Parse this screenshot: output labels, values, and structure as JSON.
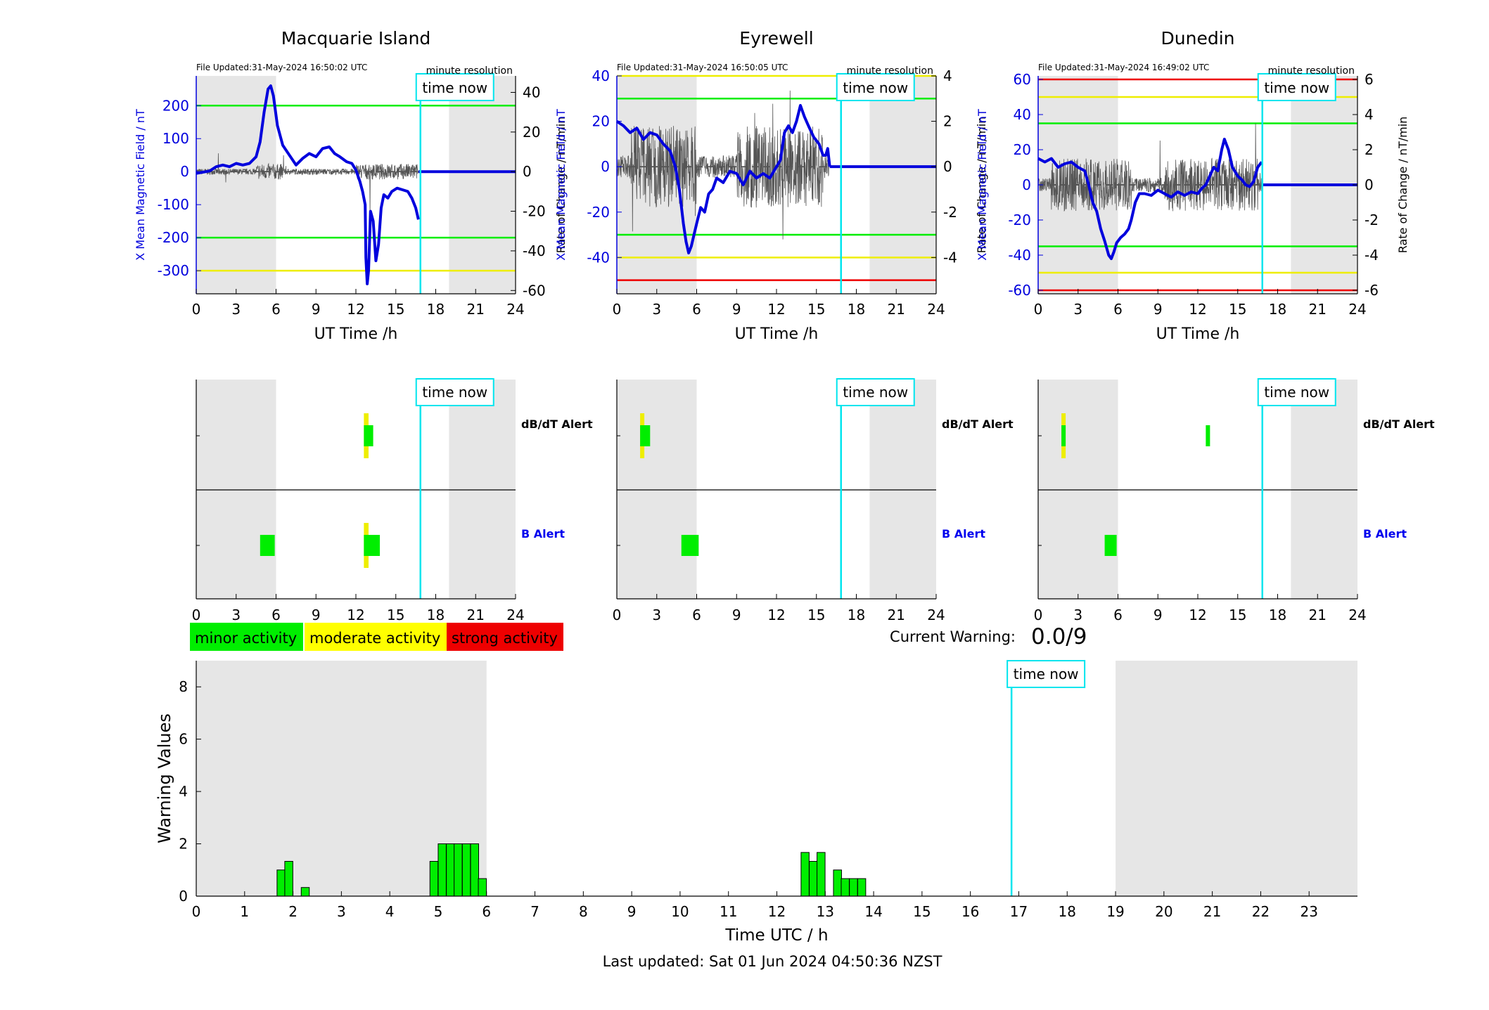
{
  "time_now_label": "time now",
  "time_now_h": 16.85,
  "night_shading": [
    [
      0,
      6
    ],
    [
      19,
      24
    ]
  ],
  "res_label": "minute resolution",
  "panels": [
    {
      "station": "Macquarie Island",
      "file_updated": "File Updated:31-May-2024 16:50:02 UTC",
      "ylabel_left": "X Mean Magnetic Field / nT",
      "ylabel_right": "Rate of Change / nT/min",
      "xlabel": "UT Time /h",
      "left_range": [
        -370,
        290
      ],
      "left_ticks": [
        -300,
        -200,
        -100,
        0,
        100,
        200
      ],
      "right_range": [
        -61.67,
        48.33
      ],
      "right_ticks": [
        -60,
        -40,
        -20,
        0,
        20,
        40
      ],
      "thresholds": [
        {
          "value": 200,
          "color": "#00ee00"
        },
        {
          "value": -200,
          "color": "#00ee00"
        },
        {
          "value": -300,
          "color": "#eeee00"
        }
      ],
      "mean_field": [
        [
          0,
          -5
        ],
        [
          1,
          2
        ],
        [
          1.5,
          15
        ],
        [
          2,
          20
        ],
        [
          2.5,
          15
        ],
        [
          3,
          25
        ],
        [
          3.5,
          20
        ],
        [
          4,
          25
        ],
        [
          4.5,
          45
        ],
        [
          4.8,
          90
        ],
        [
          5.1,
          180
        ],
        [
          5.4,
          250
        ],
        [
          5.6,
          260
        ],
        [
          5.8,
          230
        ],
        [
          6.1,
          140
        ],
        [
          6.5,
          80
        ],
        [
          7,
          50
        ],
        [
          7.5,
          20
        ],
        [
          8,
          40
        ],
        [
          8.5,
          55
        ],
        [
          9,
          45
        ],
        [
          9.5,
          70
        ],
        [
          10,
          75
        ],
        [
          10.4,
          55
        ],
        [
          10.8,
          45
        ],
        [
          11.3,
          30
        ],
        [
          11.7,
          25
        ],
        [
          12,
          5
        ],
        [
          12.3,
          -30
        ],
        [
          12.5,
          -60
        ],
        [
          12.7,
          -100
        ],
        [
          12.75,
          -260
        ],
        [
          12.85,
          -340
        ],
        [
          12.95,
          -300
        ],
        [
          13.1,
          -120
        ],
        [
          13.3,
          -150
        ],
        [
          13.5,
          -270
        ],
        [
          13.7,
          -220
        ],
        [
          13.9,
          -110
        ],
        [
          14.1,
          -70
        ],
        [
          14.4,
          -80
        ],
        [
          14.7,
          -60
        ],
        [
          15.1,
          -50
        ],
        [
          15.5,
          -55
        ],
        [
          15.9,
          -60
        ],
        [
          16.2,
          -80
        ],
        [
          16.5,
          -110
        ],
        [
          16.7,
          -145
        ]
      ],
      "future_value": 0,
      "roc_seed": 7,
      "roc_scale": [
        1.5,
        4,
        35
      ],
      "alerts": {
        "dbdt": [
          {
            "start": 12.6,
            "end": 12.95,
            "color": "#eeee00",
            "tall": true
          },
          {
            "start": 12.6,
            "end": 13.3,
            "color": "#00ee00",
            "tall": false
          }
        ],
        "b": [
          {
            "start": 4.8,
            "end": 5.9,
            "color": "#00ee00",
            "tall": false
          },
          {
            "start": 12.6,
            "end": 12.95,
            "color": "#eeee00",
            "tall": true
          },
          {
            "start": 12.6,
            "end": 13.8,
            "color": "#00ee00",
            "tall": false
          }
        ]
      }
    },
    {
      "station": "Eyrewell",
      "file_updated": "File Updated:31-May-2024 16:50:05 UTC",
      "ylabel_left": "X Mean Magnetic Field / nT",
      "ylabel_right": "Rate of Change / nT/min",
      "xlabel": "UT Time /h",
      "left_range": [
        -56,
        40
      ],
      "left_ticks": [
        -40,
        -20,
        0,
        20,
        40
      ],
      "right_range": [
        -5.6,
        4.0
      ],
      "right_ticks": [
        -4,
        -2,
        0,
        2,
        4
      ],
      "thresholds": [
        {
          "value": 40,
          "color": "#eeee00"
        },
        {
          "value": 30,
          "color": "#00ee00"
        },
        {
          "value": -30,
          "color": "#00ee00"
        },
        {
          "value": -40,
          "color": "#eeee00"
        },
        {
          "value": -50,
          "color": "#ee0000"
        }
      ],
      "mean_field": [
        [
          0,
          20
        ],
        [
          0.5,
          18
        ],
        [
          1,
          15
        ],
        [
          1.5,
          17
        ],
        [
          2,
          12
        ],
        [
          2.5,
          15
        ],
        [
          3,
          14
        ],
        [
          3.5,
          10
        ],
        [
          4,
          7
        ],
        [
          4.4,
          0
        ],
        [
          4.7,
          -10
        ],
        [
          5,
          -25
        ],
        [
          5.2,
          -33
        ],
        [
          5.4,
          -38
        ],
        [
          5.6,
          -35
        ],
        [
          5.8,
          -30
        ],
        [
          6,
          -25
        ],
        [
          6.3,
          -18
        ],
        [
          6.6,
          -20
        ],
        [
          6.9,
          -12
        ],
        [
          7.2,
          -10
        ],
        [
          7.5,
          -5
        ],
        [
          8,
          -7
        ],
        [
          8.5,
          -2
        ],
        [
          9,
          -3
        ],
        [
          9.5,
          -8
        ],
        [
          10,
          -2
        ],
        [
          10.5,
          -5
        ],
        [
          11,
          -3
        ],
        [
          11.5,
          -5
        ],
        [
          12,
          0
        ],
        [
          12.3,
          3
        ],
        [
          12.6,
          15
        ],
        [
          12.9,
          18
        ],
        [
          13.2,
          15
        ],
        [
          13.5,
          20
        ],
        [
          13.8,
          27
        ],
        [
          14.1,
          22
        ],
        [
          14.4,
          18
        ],
        [
          14.8,
          13
        ],
        [
          15.2,
          10
        ],
        [
          15.5,
          5
        ],
        [
          15.7,
          5
        ],
        [
          15.85,
          8
        ],
        [
          16,
          0
        ]
      ],
      "future_value": 0,
      "roc_seed": 23,
      "roc_scale": [
        0.5,
        1.8,
        3.5
      ],
      "alerts": {
        "dbdt": [
          {
            "start": 1.75,
            "end": 2.05,
            "color": "#eeee00",
            "tall": true
          },
          {
            "start": 1.75,
            "end": 2.5,
            "color": "#00ee00",
            "tall": false
          }
        ],
        "b": [
          {
            "start": 4.85,
            "end": 6.15,
            "color": "#00ee00",
            "tall": false
          }
        ]
      }
    },
    {
      "station": "Dunedin",
      "file_updated": "File Updated:31-May-2024 16:49:02 UTC",
      "ylabel_left": "X Mean Magnetic Field / nT",
      "ylabel_right": "Rate of Change / nT/min",
      "xlabel": "UT Time /h",
      "left_range": [
        -62,
        62
      ],
      "left_ticks": [
        -60,
        -40,
        -20,
        0,
        20,
        40,
        60
      ],
      "right_range": [
        -6.2,
        6.2
      ],
      "right_ticks": [
        -6,
        -4,
        -2,
        0,
        2,
        4,
        6
      ],
      "thresholds": [
        {
          "value": 60,
          "color": "#ee0000"
        },
        {
          "value": 50,
          "color": "#eeee00"
        },
        {
          "value": 35,
          "color": "#00ee00"
        },
        {
          "value": -35,
          "color": "#00ee00"
        },
        {
          "value": -50,
          "color": "#eeee00"
        },
        {
          "value": -60,
          "color": "#ee0000"
        }
      ],
      "mean_field": [
        [
          0,
          15
        ],
        [
          0.5,
          13
        ],
        [
          1,
          15
        ],
        [
          1.5,
          10
        ],
        [
          2,
          12
        ],
        [
          2.5,
          13
        ],
        [
          3,
          10
        ],
        [
          3.5,
          8
        ],
        [
          3.8,
          0
        ],
        [
          4.1,
          -10
        ],
        [
          4.4,
          -15
        ],
        [
          4.7,
          -25
        ],
        [
          5,
          -32
        ],
        [
          5.3,
          -40
        ],
        [
          5.5,
          -42
        ],
        [
          5.7,
          -38
        ],
        [
          5.9,
          -33
        ],
        [
          6.2,
          -30
        ],
        [
          6.5,
          -28
        ],
        [
          6.8,
          -25
        ],
        [
          7,
          -20
        ],
        [
          7.3,
          -10
        ],
        [
          7.6,
          -5
        ],
        [
          8,
          -5
        ],
        [
          8.5,
          -6
        ],
        [
          9,
          -3
        ],
        [
          9.5,
          -5
        ],
        [
          10,
          -7
        ],
        [
          10.5,
          -4
        ],
        [
          11,
          -6
        ],
        [
          11.5,
          -4
        ],
        [
          12,
          -5
        ],
        [
          12.3,
          -2
        ],
        [
          12.6,
          0
        ],
        [
          12.9,
          5
        ],
        [
          13.2,
          10
        ],
        [
          13.5,
          8
        ],
        [
          13.8,
          20
        ],
        [
          14,
          26
        ],
        [
          14.3,
          20
        ],
        [
          14.6,
          10
        ],
        [
          15,
          5
        ],
        [
          15.3,
          3
        ],
        [
          15.6,
          0
        ],
        [
          15.9,
          -1
        ],
        [
          16.2,
          2
        ],
        [
          16.5,
          10
        ],
        [
          16.8,
          13
        ]
      ],
      "future_value": 0,
      "roc_seed": 41,
      "roc_scale": [
        0.4,
        1.5,
        4.5
      ],
      "alerts": {
        "dbdt": [
          {
            "start": 1.75,
            "end": 2.0,
            "color": "#eeee00",
            "tall": true
          },
          {
            "start": 1.75,
            "end": 2.0,
            "color": "#00ee00",
            "tall": false
          },
          {
            "start": 12.6,
            "end": 12.85,
            "color": "#00ee00",
            "tall": false
          }
        ],
        "b": [
          {
            "start": 5.0,
            "end": 5.9,
            "color": "#00ee00",
            "tall": false
          }
        ]
      }
    }
  ],
  "alert_rows": [
    {
      "label": "dB/dT Alert",
      "color": "#000000"
    },
    {
      "label": "B Alert",
      "color": "#0000ee"
    }
  ],
  "legend": [
    {
      "label": "minor activity",
      "color": "#00ee00"
    },
    {
      "label": "moderate activity",
      "color": "#ffff00"
    },
    {
      "label": "strong activity",
      "color": "#ee0000"
    }
  ],
  "current_warning": {
    "label": "Current Warning:",
    "value": "0.0/9"
  },
  "chart_data": {
    "type": "bar",
    "ylabel": "Warning Values",
    "xlabel": "Time UTC / h",
    "xlim": [
      0,
      24
    ],
    "ylim": [
      0,
      9
    ],
    "xticks": [
      0,
      1,
      2,
      3,
      4,
      5,
      6,
      7,
      8,
      9,
      10,
      11,
      12,
      13,
      14,
      15,
      16,
      17,
      18,
      19,
      20,
      21,
      22,
      23
    ],
    "yticks": [
      0,
      2,
      4,
      6,
      8
    ],
    "bar_width_h": 0.1667,
    "bar_color": "#00ee00",
    "bars": [
      {
        "x": 1.67,
        "value": 1.0
      },
      {
        "x": 1.83,
        "value": 1.33
      },
      {
        "x": 2.17,
        "value": 0.33
      },
      {
        "x": 4.83,
        "value": 1.33
      },
      {
        "x": 5.0,
        "value": 2.0
      },
      {
        "x": 5.17,
        "value": 2.0
      },
      {
        "x": 5.33,
        "value": 2.0
      },
      {
        "x": 5.5,
        "value": 2.0
      },
      {
        "x": 5.67,
        "value": 2.0
      },
      {
        "x": 5.83,
        "value": 0.67
      },
      {
        "x": 12.5,
        "value": 1.67
      },
      {
        "x": 12.67,
        "value": 1.33
      },
      {
        "x": 12.83,
        "value": 1.67
      },
      {
        "x": 13.17,
        "value": 1.0
      },
      {
        "x": 13.33,
        "value": 0.67
      },
      {
        "x": 13.5,
        "value": 0.67
      },
      {
        "x": 13.67,
        "value": 0.67
      }
    ]
  },
  "footer": "Last updated: Sat 01 Jun 2024 04:50:36 NZST"
}
